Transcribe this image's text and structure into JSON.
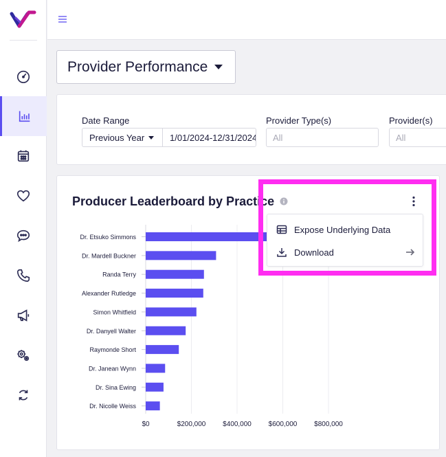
{
  "sidebar": {
    "active": "reports",
    "items": [
      {
        "icon": "speedometer-icon"
      },
      {
        "icon": "bar-chart-icon"
      },
      {
        "icon": "calendar-icon"
      },
      {
        "icon": "heart-icon"
      },
      {
        "icon": "chat-bubble-icon"
      },
      {
        "icon": "phone-icon"
      },
      {
        "icon": "megaphone-icon"
      },
      {
        "icon": "settings-gears-icon"
      },
      {
        "icon": "sync-icon"
      }
    ]
  },
  "report_selector": {
    "label": "Provider Performance"
  },
  "filters": {
    "date_range_label": "Date Range",
    "date_preset": "Previous Year",
    "date_value": "1/01/2024-12/31/2024",
    "provider_types_label": "Provider Type(s)",
    "provider_types_placeholder": "All",
    "providers_label": "Provider(s)",
    "providers_placeholder": "All"
  },
  "chart_card": {
    "title": "Producer Leaderboard by Practice",
    "menu": {
      "expose": "Expose Underlying Data",
      "download": "Download"
    }
  },
  "colors": {
    "accent": "#5b4ef0",
    "bar": "#5b4ef0",
    "highlight": "#ff2df1"
  },
  "chart_data": {
    "type": "bar",
    "orientation": "horizontal",
    "title": "Producer Leaderboard by Practice",
    "xlabel": "",
    "ylabel": "",
    "xlim": [
      0,
      900000
    ],
    "x_ticks": [
      0,
      200000,
      400000,
      600000,
      800000
    ],
    "x_tick_labels": [
      "$0",
      "$200,000",
      "$400,000",
      "$600,000",
      "$800,000"
    ],
    "grid": "vertical",
    "categories": [
      "Dr. Etsuko Simmons",
      "Dr. Mardell Buckner",
      "Randa Terry",
      "Alexander Rutledge",
      "Simon Whitfield",
      "Dr. Danyell Walter",
      "Raymonde Short",
      "Dr. Janean Wynn",
      "Dr. Sina Ewing",
      "Dr. Nicolle Weiss"
    ],
    "values": [
      530000,
      308000,
      255000,
      252000,
      222000,
      175000,
      145000,
      85000,
      78000,
      62000
    ]
  }
}
